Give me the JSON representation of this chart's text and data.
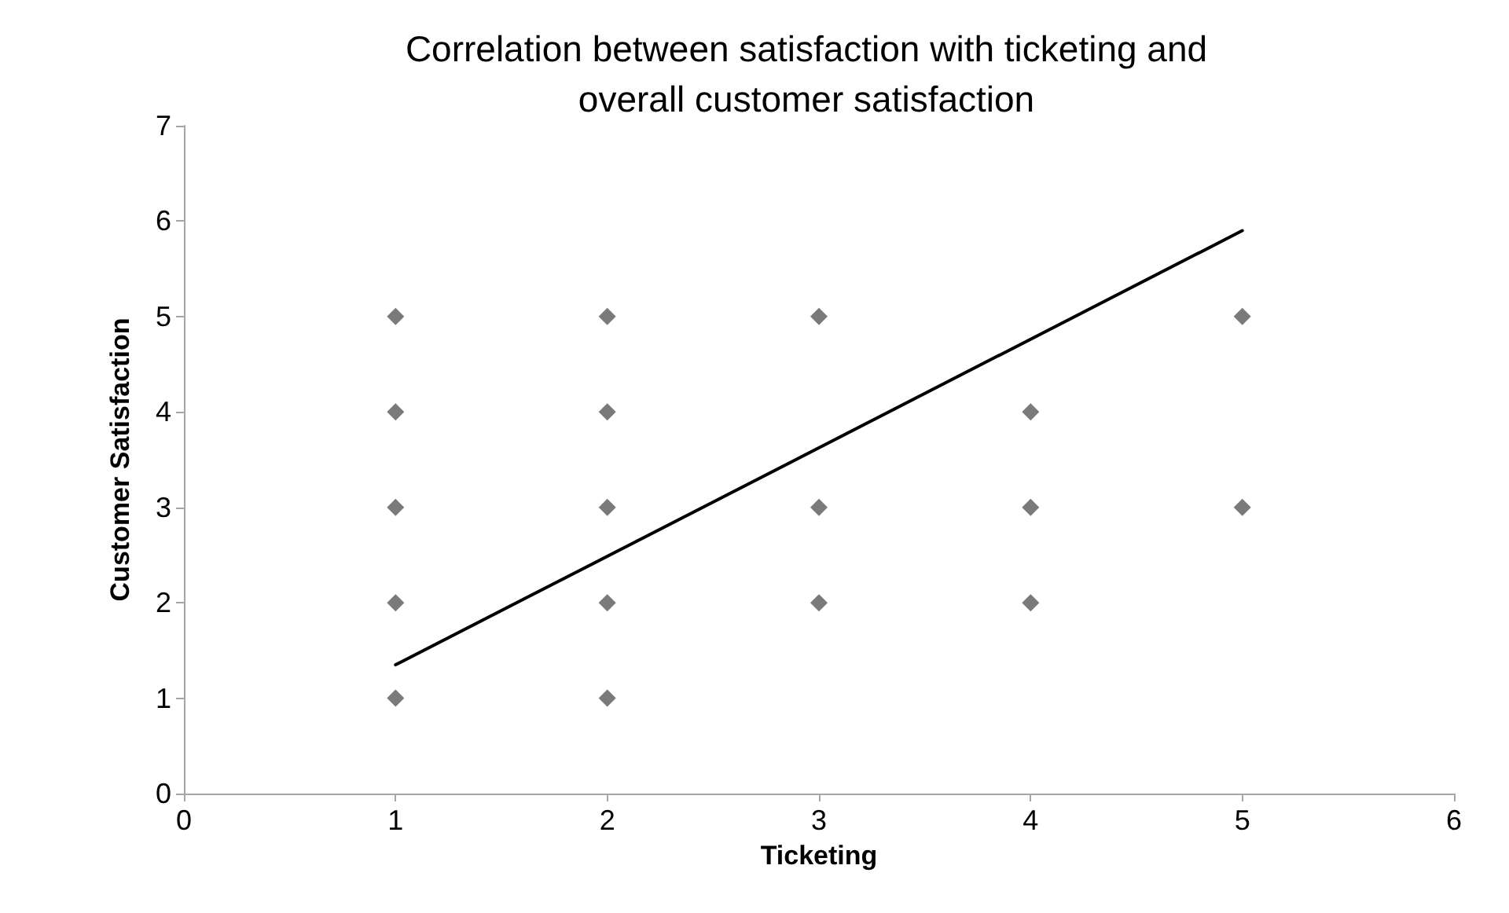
{
  "chart_data": {
    "type": "scatter",
    "title": "Correlation between satisfaction with ticketing and\noverall customer satisfaction",
    "xlabel": "Ticketing",
    "ylabel": "Customer Satisfaction",
    "series": [
      {
        "color": "#595959",
        "marker": "diamond",
        "x": [
          1,
          1,
          1,
          1,
          1,
          2,
          2,
          2,
          2,
          2,
          3,
          3,
          3,
          4,
          4,
          4,
          5,
          5
        ],
        "values": [
          1,
          2,
          3,
          4,
          5,
          1,
          2,
          3,
          4,
          5,
          2,
          3,
          5,
          2,
          3,
          4,
          3,
          5
        ]
      },
      {
        "type": "line",
        "color": "#000000",
        "marker": "none",
        "line_style": "solid",
        "x": [
          1,
          5
        ],
        "values": [
          1.35,
          5.9
        ]
      }
    ],
    "xlim": [
      0,
      6
    ],
    "xticks": [
      0,
      1,
      2,
      3,
      4,
      5,
      6
    ],
    "ylim": [
      0,
      7
    ],
    "yticks": [
      0,
      1,
      2,
      3,
      4,
      5,
      6,
      7
    ],
    "grid": false
  }
}
